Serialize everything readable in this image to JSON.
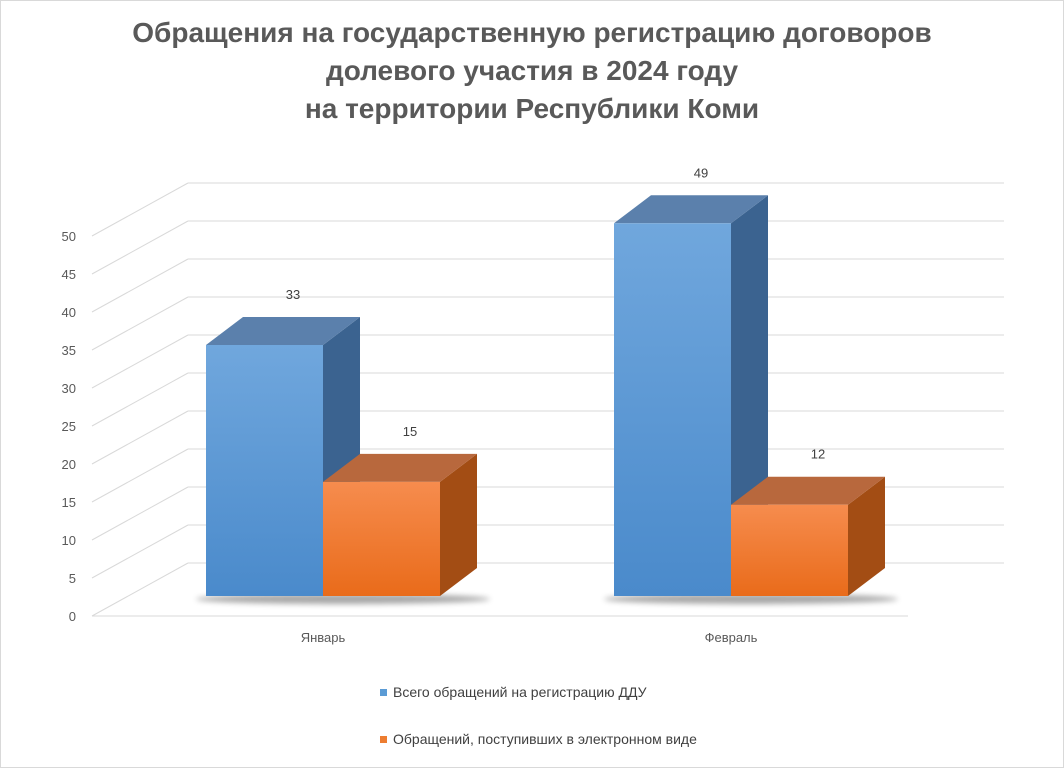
{
  "chart_data": {
    "type": "bar",
    "variant": "3d-clustered-column",
    "title": [
      "Обращения на государственную регистрацию договоров",
      "долевого участия в 2024 году",
      "на территории Республики Коми"
    ],
    "categories": [
      "Январь",
      "Февраль"
    ],
    "series": [
      {
        "name": "Всего обращений на регистрацию ДДУ",
        "values": [
          33,
          49
        ],
        "color": "#5b9bd5"
      },
      {
        "name": "Обращений, поступивших в электронном виде",
        "values": [
          15,
          12
        ],
        "color": "#ed7d31"
      }
    ],
    "ylim": [
      0,
      50
    ],
    "yticks": [
      0,
      5,
      10,
      15,
      20,
      25,
      30,
      35,
      40,
      45,
      50
    ],
    "grid": true,
    "legend_position": "bottom"
  }
}
